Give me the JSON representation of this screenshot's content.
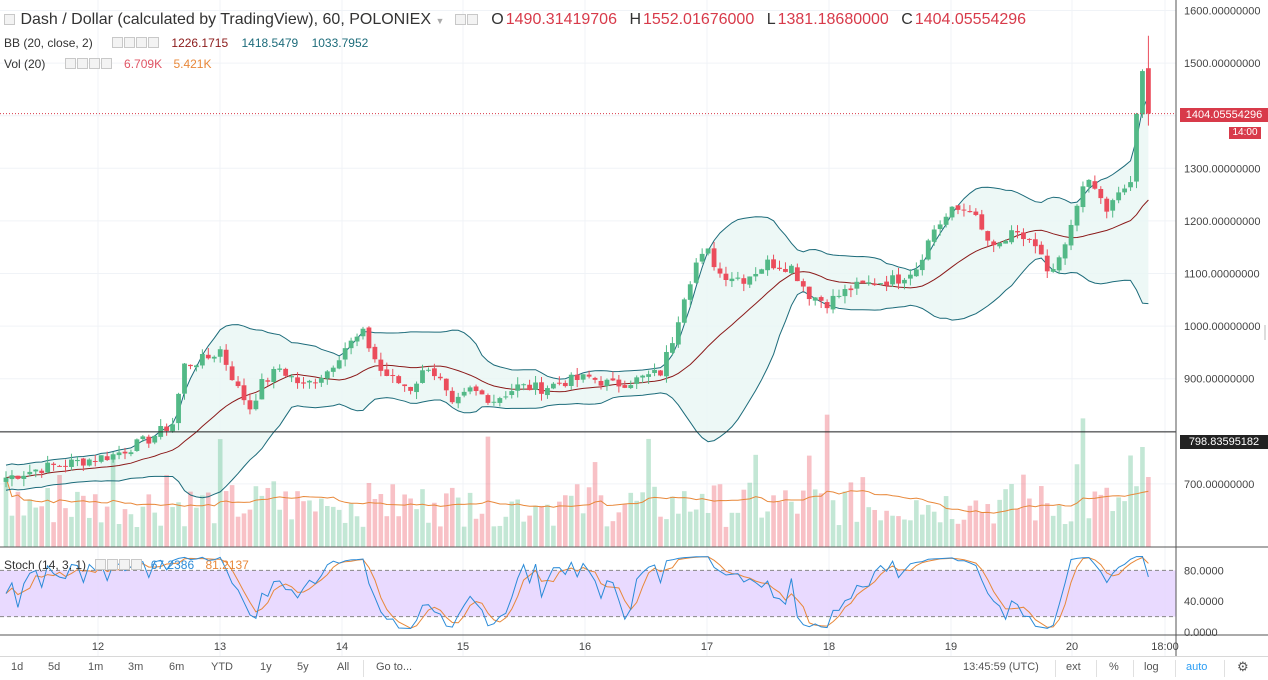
{
  "main_legend": {
    "title": "Dash / Dollar (calculated by TradingView), 60, POLONIEX",
    "o_label": "O",
    "o": "1490.31419706",
    "h_label": "H",
    "h": "1552.01676000",
    "l_label": "L",
    "l": "1381.18680000",
    "c_label": "C",
    "c": "1404.05554296"
  },
  "bb_legend": {
    "name": "BB (20, close, 2)",
    "v1": "1226.1715",
    "v2": "1418.5479",
    "v3": "1033.7952"
  },
  "vol_legend": {
    "name": "Vol (20)",
    "v1": "6.709K",
    "v2": "5.421K"
  },
  "stoch_legend": {
    "name": "Stoch (14, 3, 1)",
    "k": "67.2386",
    "d": "81.2137"
  },
  "price_axis": {
    "labels": [
      "1600.00000000",
      "1500.00000000",
      "1300.00000000",
      "1200.00000000",
      "1100.00000000",
      "1000.00000000",
      "900.00000000",
      "700.00000000"
    ],
    "last_price": "1404.05554296",
    "last_time": "14:00",
    "level": "798.83595182"
  },
  "stoch_axis": {
    "labels": [
      "80.0000",
      "40.0000",
      "0.0000"
    ]
  },
  "time_axis": {
    "labels": [
      "12",
      "13",
      "14",
      "15",
      "16",
      "17",
      "18",
      "19",
      "20",
      "18:00"
    ]
  },
  "bottom_bar": {
    "ranges": [
      "1d",
      "5d",
      "1m",
      "3m",
      "6m",
      "YTD",
      "1y",
      "5y",
      "All"
    ],
    "goto": "Go to...",
    "clock": "13:45:59 (UTC)",
    "ext": "ext",
    "percent": "%",
    "log": "log",
    "auto": "auto"
  },
  "colors": {
    "up": "#53b987",
    "down": "#eb4d5c",
    "bb_basis": "#8b1a1a",
    "bb_band": "#1c6b7a",
    "bb_fill": "#e8f6f4",
    "stoch_k": "#2b8bd8",
    "stoch_d": "#e8883a",
    "stoch_zone": "#e5d4ff"
  },
  "chart_data": {
    "type": "candlestick",
    "symbol": "Dash / Dollar",
    "interval": "60",
    "anchors": [
      [
        0,
        712
      ],
      [
        6,
        730
      ],
      [
        12,
        742
      ],
      [
        18,
        755
      ],
      [
        24,
        785
      ],
      [
        28,
        815
      ],
      [
        30,
        925
      ],
      [
        34,
        940
      ],
      [
        36,
        955
      ],
      [
        39,
        880
      ],
      [
        41,
        845
      ],
      [
        43,
        890
      ],
      [
        46,
        920
      ],
      [
        50,
        885
      ],
      [
        54,
        915
      ],
      [
        57,
        960
      ],
      [
        60,
        985
      ],
      [
        63,
        915
      ],
      [
        65,
        898
      ],
      [
        68,
        882
      ],
      [
        71,
        925
      ],
      [
        73,
        895
      ],
      [
        75,
        845
      ],
      [
        78,
        878
      ],
      [
        82,
        860
      ],
      [
        86,
        885
      ],
      [
        90,
        882
      ],
      [
        94,
        895
      ],
      [
        98,
        902
      ],
      [
        102,
        888
      ],
      [
        106,
        898
      ],
      [
        110,
        912
      ],
      [
        112,
        975
      ],
      [
        114,
        1060
      ],
      [
        116,
        1120
      ],
      [
        118,
        1140
      ],
      [
        120,
        1100
      ],
      [
        124,
        1090
      ],
      [
        128,
        1120
      ],
      [
        132,
        1112
      ],
      [
        135,
        1060
      ],
      [
        138,
        1045
      ],
      [
        142,
        1072
      ],
      [
        146,
        1083
      ],
      [
        150,
        1090
      ],
      [
        153,
        1112
      ],
      [
        156,
        1185
      ],
      [
        159,
        1218
      ],
      [
        162,
        1225
      ],
      [
        164,
        1180
      ],
      [
        166,
        1145
      ],
      [
        169,
        1172
      ],
      [
        172,
        1165
      ],
      [
        174,
        1130
      ],
      [
        175,
        1095
      ],
      [
        177,
        1120
      ],
      [
        179,
        1185
      ],
      [
        181,
        1275
      ],
      [
        183,
        1260
      ],
      [
        185,
        1220
      ],
      [
        187,
        1248
      ],
      [
        189,
        1275
      ],
      [
        190,
        1395
      ],
      [
        191,
        1480
      ],
      [
        192,
        1404
      ]
    ],
    "price_range": [
      580,
      1620
    ],
    "date_ticks": {
      "12": 18,
      "13": 42,
      "14": 66,
      "15": 90,
      "16": 114,
      "17": 138,
      "18": 162,
      "19": 186,
      "20": 210
    },
    "stoch_levels": [
      80,
      20,
      0
    ]
  }
}
